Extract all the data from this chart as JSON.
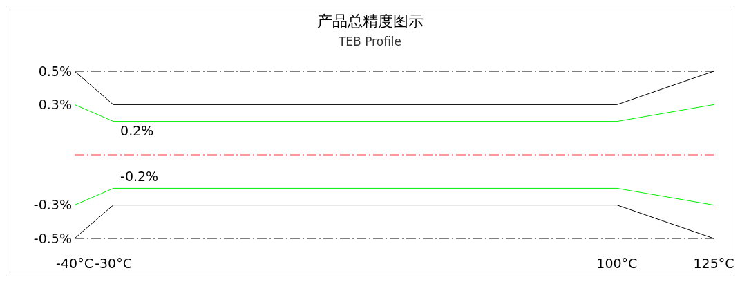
{
  "chart_data": {
    "type": "line",
    "title": "产品总精度图示",
    "subtitle": "TEB Profile",
    "x": [
      -40,
      -30,
      100,
      125
    ],
    "series": [
      {
        "color": "#000000",
        "values": [
          0.5,
          0.3,
          0.3,
          0.5
        ]
      },
      {
        "color": "#00ee00",
        "values": [
          0.3,
          0.2,
          0.2,
          0.3
        ]
      },
      {
        "color": "#00ee00",
        "values": [
          -0.3,
          -0.2,
          -0.2,
          -0.3
        ]
      },
      {
        "color": "#000000",
        "values": [
          -0.5,
          -0.3,
          -0.3,
          -0.5
        ]
      }
    ],
    "xlim": [
      -40,
      125
    ],
    "xticks": [
      {
        "value": -40,
        "label": "-40°C"
      },
      {
        "value": -30,
        "label": "-30°C"
      },
      {
        "value": 100,
        "label": "100°C"
      },
      {
        "value": 125,
        "label": "125°C"
      }
    ],
    "ylim": [
      -0.5,
      0.5
    ],
    "yticks": [
      {
        "value": -0.5,
        "label": "-0.5%"
      },
      {
        "value": -0.3,
        "label": "-0.3%"
      },
      {
        "value": 0.3,
        "label": "0.3%"
      },
      {
        "value": 0.5,
        "label": "0.5%"
      }
    ],
    "ref_lines": [
      {
        "axis": "y",
        "value": 0.5,
        "color": "#000000",
        "line_style": "dashed"
      },
      {
        "axis": "y",
        "value": 0,
        "color": "#ff3333",
        "line_style": "dashed"
      },
      {
        "axis": "y",
        "value": -0.5,
        "color": "#000000",
        "line_style": "dashed"
      }
    ],
    "annotations": [
      {
        "text": "0.2%",
        "x": -30,
        "y": 0.2
      },
      {
        "text": "-0.2%",
        "x": -30,
        "y": -0.2
      }
    ],
    "grid": false,
    "marker": "none",
    "line_style": "solid"
  }
}
